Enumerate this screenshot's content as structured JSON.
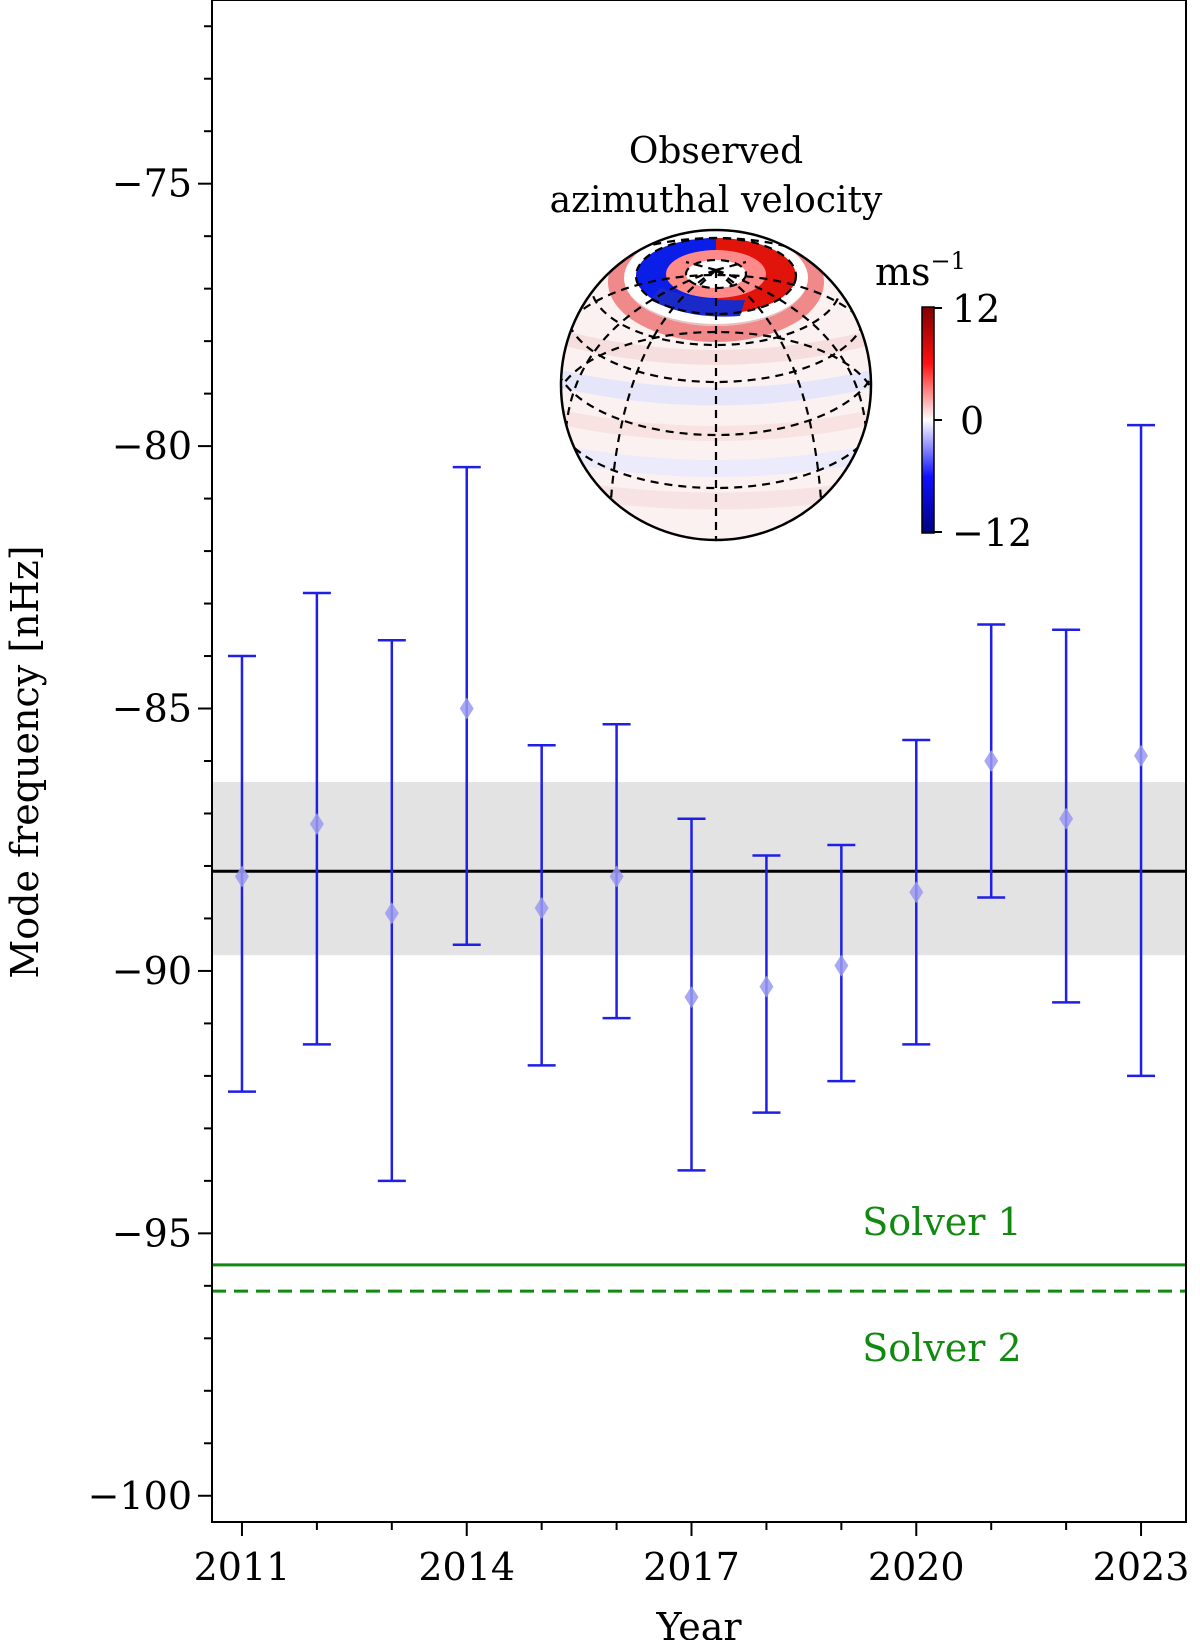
{
  "chart_data": {
    "type": "scatter",
    "xlabel": "Year",
    "ylabel": "Mode frequency [nHz]",
    "xlim": [
      2010.6,
      2023.6
    ],
    "ylim": [
      -100.5,
      -71.5
    ],
    "x_tick_values": [
      2011,
      2014,
      2017,
      2020,
      2023
    ],
    "x_tick_labels": [
      "2011",
      "2014",
      "2017",
      "2020",
      "2023"
    ],
    "y_tick_values": [
      -75,
      -80,
      -85,
      -90,
      -95,
      -100
    ],
    "y_tick_labels": [
      "−75",
      "−80",
      "−85",
      "−90",
      "−95",
      "−100"
    ],
    "series": [
      {
        "color": "#1f1fe6",
        "marker": "diamond",
        "points": [
          {
            "x": 2011,
            "y": -88.2,
            "err_low": -92.3,
            "err_high": -84.0
          },
          {
            "x": 2012,
            "y": -87.2,
            "err_low": -91.4,
            "err_high": -82.8
          },
          {
            "x": 2013,
            "y": -88.9,
            "err_low": -94.0,
            "err_high": -83.7
          },
          {
            "x": 2014,
            "y": -85.0,
            "err_low": -89.5,
            "err_high": -80.4
          },
          {
            "x": 2015,
            "y": -88.8,
            "err_low": -91.8,
            "err_high": -85.7
          },
          {
            "x": 2016,
            "y": -88.2,
            "err_low": -90.9,
            "err_high": -85.3
          },
          {
            "x": 2017,
            "y": -90.5,
            "err_low": -93.8,
            "err_high": -87.1
          },
          {
            "x": 2018,
            "y": -90.3,
            "err_low": -92.7,
            "err_high": -87.8
          },
          {
            "x": 2019,
            "y": -89.9,
            "err_low": -92.1,
            "err_high": -87.6
          },
          {
            "x": 2020,
            "y": -88.5,
            "err_low": -91.4,
            "err_high": -85.6
          },
          {
            "x": 2021,
            "y": -86.0,
            "err_low": -88.6,
            "err_high": -83.4
          },
          {
            "x": 2022,
            "y": -87.1,
            "err_low": -90.6,
            "err_high": -83.5
          },
          {
            "x": 2023,
            "y": -85.9,
            "err_low": -92.0,
            "err_high": -79.6
          }
        ]
      }
    ],
    "mean_line": {
      "y": -88.1,
      "color": "#000000"
    },
    "mean_band": {
      "low": -89.7,
      "high": -86.4,
      "color": "#e3e3e3"
    },
    "solver_lines": [
      {
        "label": "Solver 1",
        "y": -95.6,
        "style": "solid",
        "color": "#128a12"
      },
      {
        "label": "Solver 2",
        "y": -96.1,
        "style": "dashed",
        "color": "#128a12"
      }
    ],
    "inset": {
      "title_line1": "Observed",
      "title_line2": "azimuthal velocity",
      "colorbar_unit": "ms",
      "colorbar_unit_exp": "−1",
      "colorbar_ticks": [
        "12",
        "0",
        "−12"
      ],
      "colormap": "seismic"
    },
    "grid": false,
    "legend": "none"
  }
}
